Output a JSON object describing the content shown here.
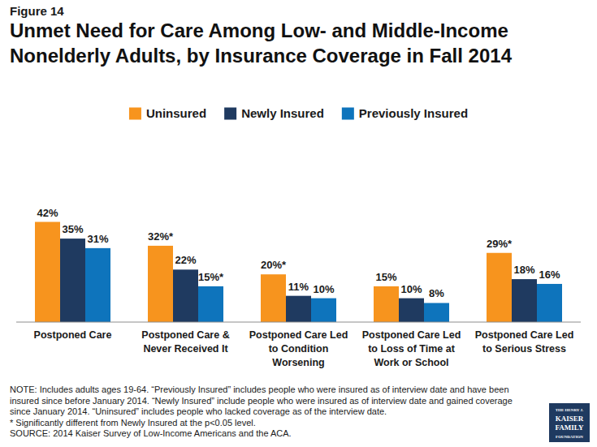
{
  "chart_data": {
    "type": "bar",
    "title": "Unmet Need for Care Among Low- and Middle-Income Nonelderly Adults, by Insurance Coverage in Fall 2014",
    "categories": [
      "Postponed Care",
      "Postponed Care & Never Received It",
      "Postponed Care Led to Condition Worsening",
      "Postponed Care Led to Loss of Time at Work or School",
      "Postponed Care Led to Serious Stress"
    ],
    "series": [
      {
        "name": "Uninsured",
        "color": "#F7941E",
        "values": [
          42,
          32,
          20,
          15,
          29
        ],
        "value_labels": [
          "42%",
          "32%*",
          "20%*",
          "15%",
          "29%*"
        ]
      },
      {
        "name": "Newly Insured",
        "color": "#1F3A60",
        "values": [
          35,
          22,
          11,
          10,
          18
        ],
        "value_labels": [
          "35%",
          "22%",
          "11%",
          "10%",
          "18%"
        ]
      },
      {
        "name": "Previously Insured",
        "color": "#0E74BC",
        "values": [
          31,
          15,
          10,
          8,
          16
        ],
        "value_labels": [
          "31%",
          "15%*",
          "10%",
          "8%",
          "16%"
        ]
      }
    ],
    "ylim": [
      0,
      50
    ],
    "grid": false,
    "legend": "top",
    "data_labels": true,
    "tick_labels": "x",
    "annotations": {
      "figure": "Figure 14",
      "notes": [
        "NOTE: Includes adults ages 19-64. “Previously Insured” includes people who were insured as of interview date and have been insured since before January 2014. “Newly Insured” include people who were insured as of interview date and gained coverage since January 2014. “Uninsured” includes people who lacked coverage as of the interview date.",
        "* Significantly different from Newly Insured at the p<0.05 level.",
        "SOURCE: 2014 Kaiser Survey of Low-Income Americans and the ACA."
      ],
      "logo": [
        "THE HENRY J.",
        "KAISER",
        "FAMILY",
        "FOUNDATION"
      ]
    }
  }
}
